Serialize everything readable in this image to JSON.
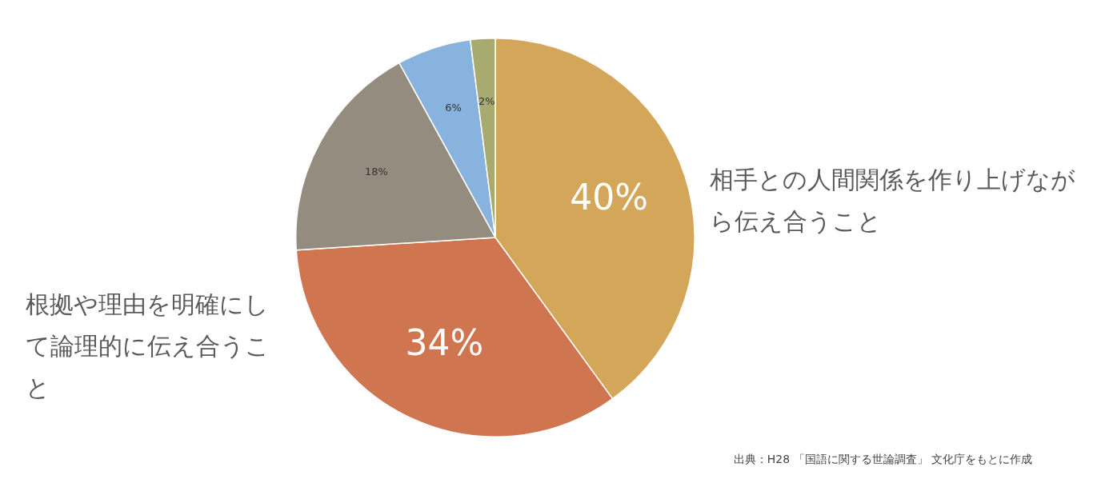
{
  "chart_data": {
    "type": "pie",
    "categories": [
      "相手との人間関係を作り上げながら伝え合うこと",
      "根拠や理由を明確にして論理的に伝え合うこと",
      null,
      null,
      null
    ],
    "values": [
      40,
      34,
      18,
      6,
      2
    ],
    "colors": [
      "#d4a65a",
      "#cf7550",
      "#958c80",
      "#88b3de",
      "#a9aa70"
    ],
    "value_labels": [
      "40%",
      "34%",
      "18%",
      "6%",
      "2%"
    ],
    "legend": false,
    "annotations": [
      "出典：H28 「国語に関する世論調査」 文化庁をもとに作成"
    ]
  }
}
